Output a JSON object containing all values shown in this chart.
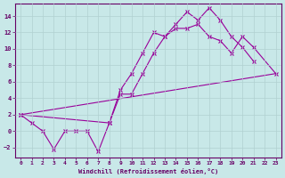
{
  "xlabel": "Windchill (Refroidissement éolien,°C)",
  "bg_color": "#c8e8e8",
  "line_color": "#990099",
  "tick_color": "#660066",
  "grid_color": "#b0d0d0",
  "xlim": [
    -0.5,
    23.5
  ],
  "ylim": [
    -3.2,
    15.5
  ],
  "xticks": [
    0,
    1,
    2,
    3,
    4,
    5,
    6,
    7,
    8,
    9,
    10,
    11,
    12,
    13,
    14,
    15,
    16,
    17,
    18,
    19,
    20,
    21,
    22,
    23
  ],
  "yticks": [
    -2,
    0,
    2,
    4,
    6,
    8,
    10,
    12,
    14
  ],
  "line1_x": [
    0,
    1,
    2,
    3,
    4,
    5,
    6,
    7,
    8,
    9,
    10,
    11,
    12,
    13,
    14,
    15,
    16,
    17,
    18,
    19,
    20,
    21
  ],
  "line1_y": [
    2.0,
    1.0,
    0.0,
    -2.2,
    0.0,
    0.0,
    0.0,
    -2.5,
    1.0,
    5.0,
    7.0,
    9.5,
    12.0,
    11.5,
    13.0,
    14.5,
    13.5,
    15.0,
    13.5,
    11.5,
    10.2,
    8.5
  ],
  "line2_x": [
    0,
    8,
    9,
    10,
    11,
    12,
    13,
    14,
    15,
    16,
    17,
    18,
    19,
    20,
    21,
    23
  ],
  "line2_y": [
    2.0,
    1.0,
    4.5,
    4.5,
    7.0,
    9.5,
    11.5,
    12.5,
    12.5,
    13.0,
    11.5,
    11.0,
    9.5,
    11.5,
    10.2,
    7.0
  ],
  "line3_x": [
    0,
    23
  ],
  "line3_y": [
    2.0,
    7.0
  ]
}
